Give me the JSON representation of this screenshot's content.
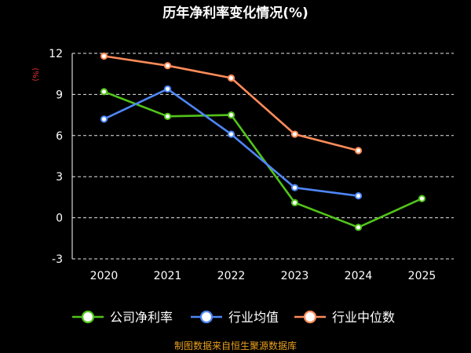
{
  "chart_data": {
    "type": "line",
    "title": "历年净利率变化情况(%)",
    "ylabel": "(%)",
    "categories": [
      "2020",
      "2021",
      "2022",
      "2023",
      "2024",
      "2025"
    ],
    "ylim": [
      -3,
      12
    ],
    "yticks": [
      "12",
      "9",
      "6",
      "3",
      "0",
      "-3"
    ],
    "grid": true,
    "legend_position": "bottom",
    "series": [
      {
        "name": "公司净利率",
        "color": "#52c41a",
        "values": [
          9.2,
          7.4,
          7.5,
          1.1,
          -0.7,
          1.4
        ]
      },
      {
        "name": "行业均值",
        "color": "#4f86f7",
        "values": [
          7.2,
          9.4,
          6.1,
          2.2,
          1.6,
          null
        ]
      },
      {
        "name": "行业中位数",
        "color": "#ff8c5a",
        "values": [
          11.8,
          11.1,
          10.2,
          6.1,
          4.9,
          null
        ]
      }
    ]
  },
  "source": "制图数据来自恒生聚源数据库",
  "colors": {
    "background": "#000000",
    "title": "#ffffff",
    "axis_text": "#ffffff",
    "ylabel": "#e03030",
    "source": "#e8a020"
  }
}
